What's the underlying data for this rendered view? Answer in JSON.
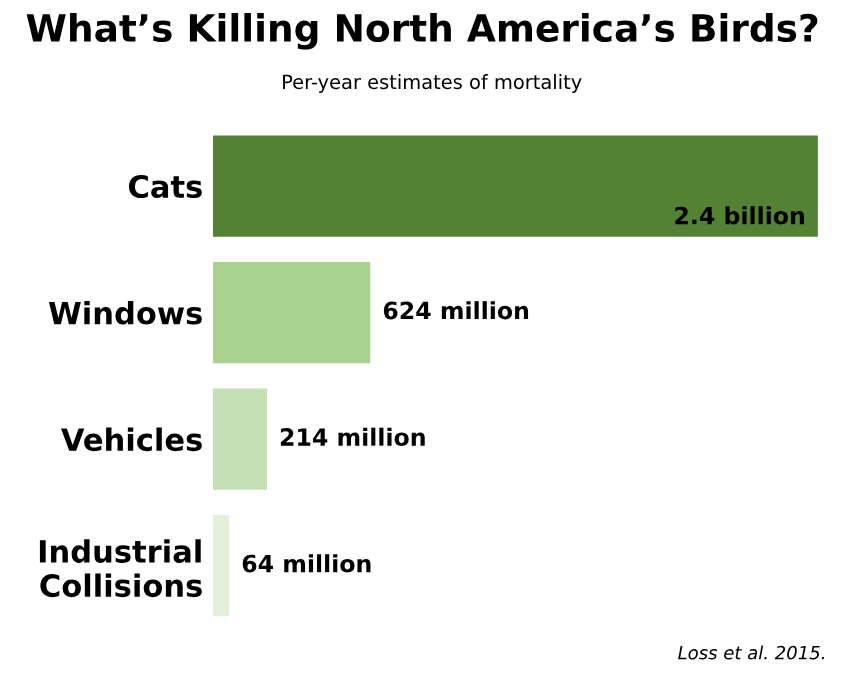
{
  "chart_data": {
    "type": "bar",
    "orientation": "horizontal",
    "title": "What’s Killing North America’s Birds?",
    "subtitle": "Per-year estimates of mortality",
    "categories": [
      "Cats",
      "Windows",
      "Vehicles",
      "Industrial\nCollisions"
    ],
    "values": [
      2400000000,
      624000000,
      214000000,
      64000000
    ],
    "colors": [
      "#548235",
      "#a9d18e",
      "#c5e0b4",
      "#e2f0d9"
    ],
    "value_labels": [
      "2.4 billion",
      "624 million",
      "214 million",
      "64 million"
    ],
    "annotations": [
      "Loss et al. 2015."
    ],
    "grid": false,
    "legend": false,
    "tick_labels": "y"
  }
}
